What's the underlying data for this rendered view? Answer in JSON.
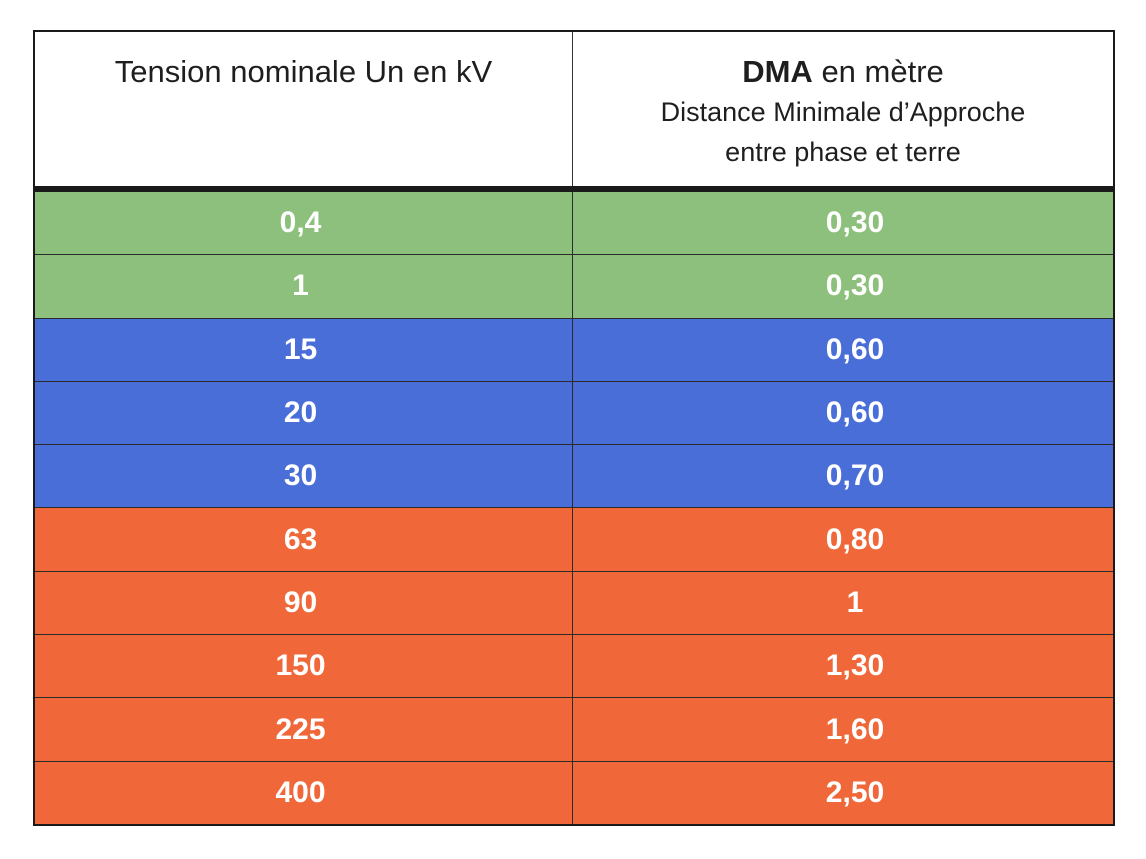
{
  "table": {
    "header": {
      "col1": "Tension nominale Un en kV",
      "col2_bold": "DMA",
      "col2_rest": " en mètre",
      "col2_sub1": "Distance Minimale d’Approche",
      "col2_sub2": "entre phase et terre"
    },
    "colors": {
      "green": "#8dc07c",
      "blue": "#4a6ed8",
      "orange": "#f0683a"
    },
    "rows": [
      {
        "tension": "0,4",
        "dma": "0,30",
        "color": "#8dc07c"
      },
      {
        "tension": "1",
        "dma": "0,30",
        "color": "#8dc07c"
      },
      {
        "tension": "15",
        "dma": "0,60",
        "color": "#4a6ed8"
      },
      {
        "tension": "20",
        "dma": "0,60",
        "color": "#4a6ed8"
      },
      {
        "tension": "30",
        "dma": "0,70",
        "color": "#4a6ed8"
      },
      {
        "tension": "63",
        "dma": "0,80",
        "color": "#f0683a"
      },
      {
        "tension": "90",
        "dma": "1",
        "color": "#f0683a"
      },
      {
        "tension": "150",
        "dma": "1,30",
        "color": "#f0683a"
      },
      {
        "tension": "225",
        "dma": "1,60",
        "color": "#f0683a"
      },
      {
        "tension": "400",
        "dma": "2,50",
        "color": "#f0683a"
      }
    ]
  }
}
